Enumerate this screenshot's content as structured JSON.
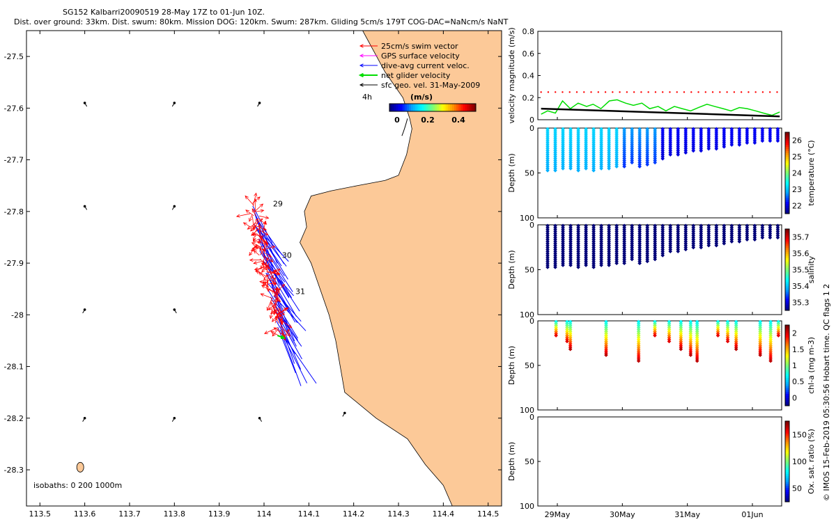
{
  "header": {
    "line1": "SG152 Kalbarri20090519 28-May 17Z to 01-Jun 10Z.",
    "line2": "Dist. over ground: 33km. Dist. swum: 80km. Mission DOG: 120km. Swum: 287km. Gliding 5cm/s 179T COG-DAC=NaNcm/s NaNT"
  },
  "side_note": "© IMOS 15-Feb-2019 05:30:56 Hobart time. QC flags 1  2",
  "colors": {
    "land": "#fcc998",
    "swim": "#ff0000",
    "gps": "#ff00ff",
    "dac": "#0000ff",
    "net": "#00dd00",
    "geo": "#000000"
  },
  "chart_data": [
    {
      "type": "map",
      "xlim": [
        113.47,
        114.53
      ],
      "ylim": [
        -28.37,
        -27.45
      ],
      "x_ticks": [
        "113.5",
        "113.6",
        "113.7",
        "113.8",
        "113.9",
        "114",
        "114.1",
        "114.2",
        "114.3",
        "114.4",
        "114.5"
      ],
      "y_ticks": [
        "-27.5",
        "-27.6",
        "-27.7",
        "-27.8",
        "-27.9",
        "-28",
        "-28.1",
        "-28.2",
        "-28.3"
      ],
      "legend": {
        "items": [
          {
            "label": "25cm/s swim vector",
            "color": "#ff0000"
          },
          {
            "label": "GPS surface velocity",
            "color": "#ff00ff"
          },
          {
            "label": "dive-avg current veloc.",
            "color": "#0000ff"
          },
          {
            "label": "net glider velocity",
            "color": "#00dd00"
          },
          {
            "label": "sfc geo. vel. 31-May-2009",
            "color": "#000000"
          }
        ],
        "time_label": "4h",
        "colorbar_title": "(m/s)",
        "colorbar_ticks": [
          "0",
          "0.2",
          "0.4"
        ]
      },
      "isobaths_label": "isobaths: 0   200  1000m",
      "day_labels": [
        {
          "text": "29",
          "lon": 114.02,
          "lat": -27.79
        },
        {
          "text": "30",
          "lon": 114.04,
          "lat": -27.89
        },
        {
          "text": "31",
          "lon": 114.07,
          "lat": -27.96
        }
      ],
      "coastline": [
        [
          114.22,
          -27.45
        ],
        [
          114.27,
          -27.53
        ],
        [
          114.31,
          -27.58
        ],
        [
          114.325,
          -27.62
        ],
        [
          114.33,
          -27.64
        ],
        [
          114.318,
          -27.69
        ],
        [
          114.3,
          -27.73
        ],
        [
          114.27,
          -27.74
        ],
        [
          114.208,
          -27.75
        ],
        [
          114.15,
          -27.76
        ],
        [
          114.105,
          -27.77
        ],
        [
          114.09,
          -27.8
        ],
        [
          114.095,
          -27.83
        ],
        [
          114.08,
          -27.86
        ],
        [
          114.105,
          -27.9
        ],
        [
          114.125,
          -27.95
        ],
        [
          114.145,
          -28.0
        ],
        [
          114.16,
          -28.05
        ],
        [
          114.17,
          -28.1
        ],
        [
          114.18,
          -28.15
        ],
        [
          114.25,
          -28.2
        ],
        [
          114.32,
          -28.24
        ],
        [
          114.36,
          -28.29
        ],
        [
          114.4,
          -28.33
        ],
        [
          114.42,
          -28.37
        ]
      ],
      "geo_arrow_samples": [
        [
          113.6,
          -27.59
        ],
        [
          113.8,
          -27.59
        ],
        [
          113.99,
          -27.59
        ],
        [
          113.6,
          -27.79
        ],
        [
          113.8,
          -27.79
        ],
        [
          113.6,
          -27.99
        ],
        [
          113.8,
          -27.99
        ],
        [
          113.6,
          -28.2
        ],
        [
          113.8,
          -28.2
        ],
        [
          113.99,
          -28.2
        ],
        [
          114.18,
          -28.19
        ]
      ]
    },
    {
      "type": "line",
      "ylabel": "velocity magnitude (m/s)",
      "ylim": [
        0,
        0.8
      ],
      "y_ticks": [
        "0",
        "0.2",
        "0.4",
        "0.6",
        "0.8"
      ],
      "x_range_days": [
        28.7,
        32.45
      ],
      "series": [
        {
          "color": "#00dd00",
          "x": [
            28.75,
            28.85,
            28.97,
            29.08,
            29.2,
            29.32,
            29.45,
            29.55,
            29.67,
            29.8,
            29.92,
            30.05,
            30.17,
            30.3,
            30.42,
            30.55,
            30.67,
            30.8,
            30.92,
            31.05,
            31.17,
            31.3,
            31.42,
            31.55,
            31.67,
            31.8,
            31.92,
            32.05,
            32.17,
            32.3,
            32.42
          ],
          "y": [
            0.05,
            0.08,
            0.06,
            0.17,
            0.1,
            0.15,
            0.12,
            0.14,
            0.1,
            0.17,
            0.18,
            0.15,
            0.13,
            0.15,
            0.1,
            0.12,
            0.08,
            0.12,
            0.1,
            0.08,
            0.11,
            0.14,
            0.12,
            0.1,
            0.08,
            0.11,
            0.1,
            0.08,
            0.06,
            0.04,
            0.07
          ]
        },
        {
          "color": "#000000",
          "x": [
            28.75,
            32.42
          ],
          "y": [
            0.1,
            0.03
          ]
        },
        {
          "color": "#ff0000",
          "x": [
            28.75,
            32.42
          ],
          "y": [
            0.25,
            0.25
          ]
        }
      ]
    },
    {
      "type": "scatter",
      "ylabel": "Depth (m)",
      "clabel": "temperature (°C)",
      "colorbar_ticks": [
        "22",
        "23",
        "24",
        "25",
        "26"
      ],
      "ylim": [
        0,
        100
      ],
      "y_ticks": [
        "0",
        "50",
        "100"
      ],
      "max_depths": [
        48,
        49,
        47,
        47,
        48,
        47,
        48,
        47,
        46,
        45,
        44,
        40,
        44,
        42,
        39,
        35,
        30,
        30,
        28,
        27,
        26,
        25,
        24,
        22,
        20,
        20,
        18,
        18,
        16,
        16,
        15
      ],
      "surface_temp": 22.8,
      "deep_temp": 21.6
    },
    {
      "type": "scatter",
      "ylabel": "Depth (m)",
      "clabel": "salinity",
      "colorbar_ticks": [
        "35.3",
        "35.4",
        "35.5",
        "35.6",
        "35.7"
      ],
      "ylim": [
        0,
        100
      ],
      "y_ticks": [
        "0",
        "50",
        "100"
      ],
      "salinity": 35.28
    },
    {
      "type": "scatter",
      "ylabel": "Depth (m)",
      "clabel": "chl-a (mg m-3)",
      "colorbar_ticks": [
        "0",
        "0.5",
        "1",
        "1.5",
        "2"
      ],
      "ylim": [
        0,
        100
      ],
      "y_ticks": [
        "0",
        "50",
        "100"
      ],
      "profile_days": [
        28.98,
        29.15,
        29.2,
        29.75,
        30.25,
        30.5,
        30.72,
        30.9,
        31.05,
        31.15,
        31.47,
        31.62,
        31.75,
        32.12,
        32.28,
        32.4
      ]
    },
    {
      "type": "scatter",
      "ylabel": "Depth (m)",
      "clabel": "Ox. sat. ratio (%)",
      "colorbar_ticks": [
        "50",
        "100",
        "150"
      ],
      "ylim": [
        0,
        100
      ],
      "y_ticks": [
        "0",
        "50",
        "100"
      ],
      "x_tick_labels": [
        "29May",
        "30May",
        "31May",
        "01Jun"
      ],
      "x_ticks_days": [
        29,
        30,
        31,
        32
      ]
    }
  ]
}
